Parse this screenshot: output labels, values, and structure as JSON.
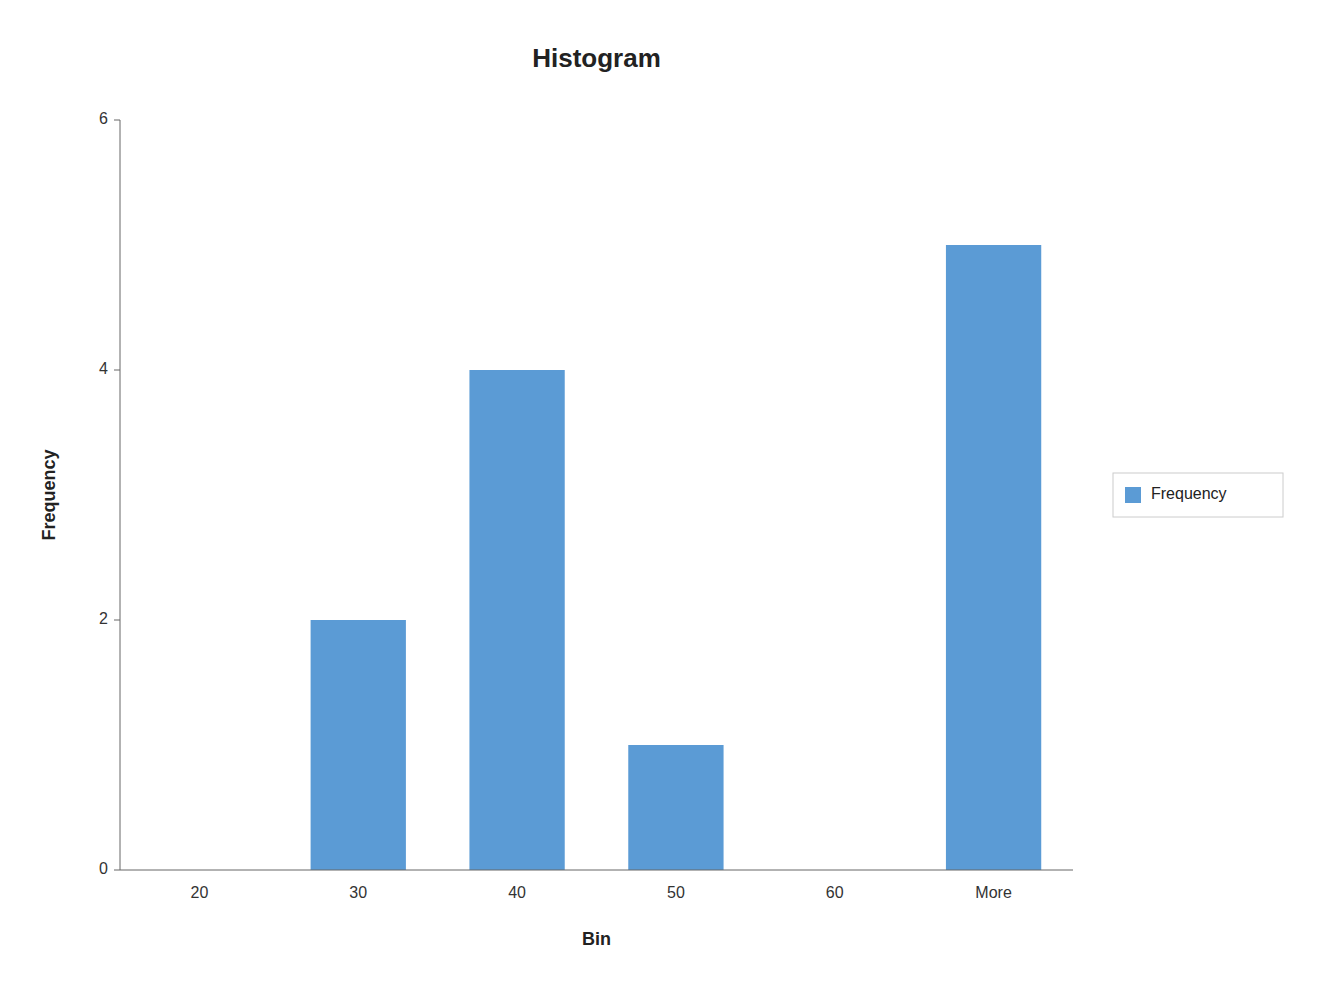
{
  "chart_data": {
    "type": "bar",
    "title": "Histogram",
    "xlabel": "Bin",
    "ylabel": "Frequency",
    "categories": [
      "20",
      "30",
      "40",
      "50",
      "60",
      "More"
    ],
    "series": [
      {
        "name": "Frequency",
        "color": "#5B9BD5",
        "values": [
          0,
          2,
          4,
          1,
          0,
          5
        ]
      }
    ],
    "ylim": [
      0,
      6
    ],
    "yticks": [
      0,
      2,
      4,
      6
    ],
    "grid": false,
    "legend": "right"
  }
}
